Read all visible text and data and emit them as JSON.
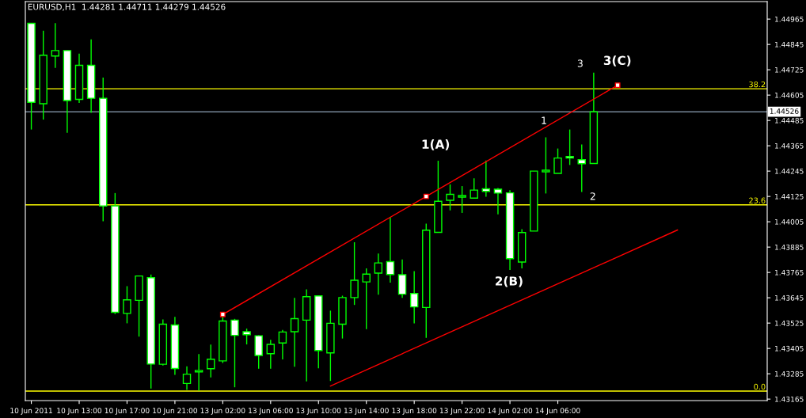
{
  "chart_data": {
    "type": "candlestick",
    "title": "EURUSD,H1  1.44281 1.44711 1.44279 1.44526",
    "categories": [
      "10 Jun 2011",
      null,
      null,
      null,
      "10 Jun 13:00",
      null,
      null,
      null,
      "10 Jun 17:00",
      null,
      null,
      null,
      "10 Jun 21:00",
      null,
      null,
      null,
      "13 Jun 02:00",
      null,
      null,
      null,
      "13 Jun 06:00",
      null,
      null,
      null,
      "13 Jun 10:00",
      null,
      null,
      null,
      "13 Jun 14:00",
      null,
      null,
      null,
      "13 Jun 18:00",
      null,
      null,
      null,
      "13 Jun 22:00",
      null,
      null,
      null,
      "14 Jun 02:00",
      null,
      null,
      null,
      "14 Jun 06:00",
      null,
      null,
      null,
      null,
      null,
      null,
      null,
      null,
      null,
      null,
      null,
      null,
      null,
      null,
      null,
      null,
      null
    ],
    "ylim": [
      1.43158,
      1.45048
    ],
    "yticks": [
      1.43165,
      1.43285,
      1.43405,
      1.43525,
      1.43645,
      1.43765,
      1.43885,
      1.44005,
      1.44125,
      1.44245,
      1.44365,
      1.44485,
      1.44605,
      1.44725,
      1.44845,
      1.44965
    ],
    "grid": false,
    "color": "#00ff00",
    "ohlc": [
      [
        1.44945,
        1.44945,
        1.44442,
        1.44571
      ],
      [
        1.44564,
        1.4491,
        1.44489,
        1.44794
      ],
      [
        1.4479,
        1.44946,
        1.44734,
        1.44816
      ],
      [
        1.44816,
        1.44816,
        1.44426,
        1.44579
      ],
      [
        1.44585,
        1.44801,
        1.44568,
        1.44746
      ],
      [
        1.44746,
        1.44869,
        1.44521,
        1.4459
      ],
      [
        1.4459,
        1.44688,
        1.44007,
        1.4408
      ],
      [
        1.4408,
        1.44141,
        1.43568,
        1.43576
      ],
      [
        1.43571,
        1.437,
        1.43524,
        1.43635
      ],
      [
        1.43633,
        1.43748,
        1.43461,
        1.43748
      ],
      [
        1.4374,
        1.43755,
        1.43215,
        1.43331
      ],
      [
        1.4333,
        1.43542,
        1.43324,
        1.4352
      ],
      [
        1.43516,
        1.43555,
        1.4328,
        1.4331
      ],
      [
        1.43239,
        1.4332,
        1.43209,
        1.43283
      ],
      [
        1.43294,
        1.43378,
        1.43205,
        1.43301
      ],
      [
        1.43309,
        1.43423,
        1.43268,
        1.43354
      ],
      [
        1.43346,
        1.43557,
        1.43336,
        1.43535
      ],
      [
        1.43539,
        1.43545,
        1.43221,
        1.43467
      ],
      [
        1.43484,
        1.43499,
        1.43424,
        1.4347
      ],
      [
        1.43465,
        1.43467,
        1.43309,
        1.43372
      ],
      [
        1.4338,
        1.43446,
        1.43309,
        1.43424
      ],
      [
        1.43431,
        1.43493,
        1.43353,
        1.43483
      ],
      [
        1.43484,
        1.43645,
        1.43318,
        1.43546
      ],
      [
        1.43539,
        1.43685,
        1.43249,
        1.4365
      ],
      [
        1.43654,
        1.43654,
        1.43311,
        1.43395
      ],
      [
        1.43384,
        1.43584,
        1.43251,
        1.43524
      ],
      [
        1.4352,
        1.43655,
        1.43452,
        1.43646
      ],
      [
        1.43646,
        1.43908,
        1.43611,
        1.43728
      ],
      [
        1.4372,
        1.43784,
        1.43496,
        1.43757
      ],
      [
        1.43762,
        1.43855,
        1.4366,
        1.4381
      ],
      [
        1.43816,
        1.44027,
        1.43717,
        1.43755
      ],
      [
        1.43754,
        1.43826,
        1.43645,
        1.43662
      ],
      [
        1.43665,
        1.43771,
        1.43524,
        1.43602
      ],
      [
        1.43599,
        1.43996,
        1.43455,
        1.43965
      ],
      [
        1.43955,
        1.44294,
        1.43955,
        1.44102
      ],
      [
        1.44107,
        1.44182,
        1.44059,
        1.44135
      ],
      [
        1.44122,
        1.44174,
        1.44047,
        1.44129
      ],
      [
        1.44117,
        1.44211,
        1.44115,
        1.44155
      ],
      [
        1.44161,
        1.44295,
        1.44124,
        1.44149
      ],
      [
        1.44159,
        1.44165,
        1.4404,
        1.44141
      ],
      [
        1.44142,
        1.44155,
        1.43777,
        1.4383
      ],
      [
        1.43814,
        1.4397,
        1.43784,
        1.43954
      ],
      [
        1.43961,
        1.44245,
        1.43961,
        1.44245
      ],
      [
        1.44242,
        1.44405,
        1.44139,
        1.44249
      ],
      [
        1.44234,
        1.44352,
        1.44234,
        1.44307
      ],
      [
        1.44314,
        1.44442,
        1.44274,
        1.44307
      ],
      [
        1.44299,
        1.44371,
        1.44146,
        1.4428
      ],
      [
        1.44281,
        1.44711,
        1.44279,
        1.44526
      ],
      null,
      null,
      null,
      null,
      null,
      null,
      null,
      null,
      null,
      null,
      null,
      null,
      null,
      null
    ],
    "series": [
      {
        "type": "line",
        "color": "#ff0000",
        "marker": "square",
        "values": [
          null,
          null,
          null,
          null,
          null,
          null,
          null,
          null,
          null,
          null,
          null,
          null,
          null,
          null,
          null,
          null,
          1.43566,
          null,
          null,
          null,
          null,
          null,
          null,
          null,
          null,
          null,
          null,
          null,
          null,
          null,
          null,
          null,
          null,
          1.44125,
          null,
          null,
          null,
          null,
          null,
          null,
          null,
          null,
          null,
          null,
          null,
          null,
          null,
          null,
          null,
          1.44652,
          null,
          null,
          null,
          null,
          null,
          null,
          null,
          null,
          null,
          null,
          null,
          null
        ]
      },
      {
        "type": "line",
        "color": "#ff0000",
        "values": [
          null,
          null,
          null,
          null,
          null,
          null,
          null,
          null,
          null,
          null,
          null,
          null,
          null,
          null,
          null,
          null,
          null,
          null,
          null,
          null,
          null,
          null,
          null,
          null,
          null,
          1.43227,
          null,
          null,
          null,
          null,
          null,
          null,
          null,
          null,
          null,
          null,
          null,
          null,
          null,
          null,
          null,
          null,
          null,
          null,
          null,
          null,
          null,
          null,
          null,
          null,
          null,
          null,
          null,
          null,
          1.43966,
          null,
          null,
          null,
          null,
          null,
          null,
          null
        ]
      }
    ],
    "ref_lines": [
      {
        "axis": "y",
        "value": 1.44635,
        "color": "#ffff00"
      },
      {
        "axis": "y",
        "value": 1.44085,
        "color": "#ffff00"
      },
      {
        "axis": "y",
        "value": 1.43203,
        "color": "#ffff00"
      },
      {
        "axis": "y",
        "value": 1.44526,
        "label": "1.44526",
        "color": "#778899"
      }
    ],
    "annotations": [
      {
        "text": "38.2",
        "y": 1.44635
      },
      {
        "text": "23.6",
        "y": 1.44085
      },
      {
        "text": "0.0",
        "y": 1.43203
      },
      "1(A)",
      "2(B)",
      "3(C)",
      "3",
      "1",
      "2"
    ]
  }
}
